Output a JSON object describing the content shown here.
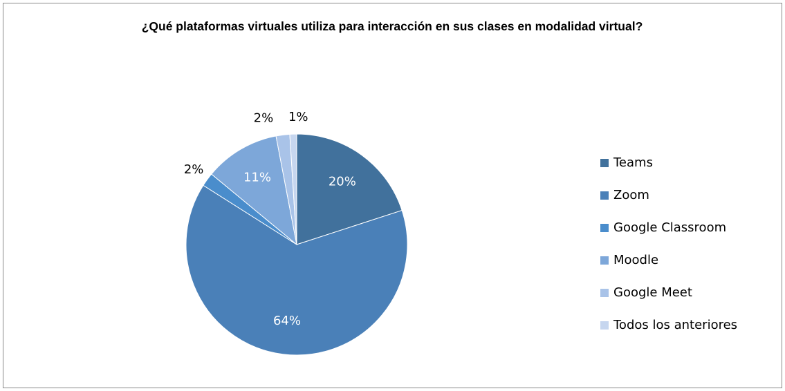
{
  "chart_data": {
    "type": "pie",
    "title": "¿Qué plataformas virtuales utiliza para interacción en sus clases en modalidad virtual?",
    "categories": [
      "Teams",
      "Zoom",
      "Google Classroom",
      "Moodle",
      "Google Meet",
      "Todos los anteriores"
    ],
    "values": [
      20,
      64,
      2,
      11,
      2,
      1
    ],
    "value_labels": [
      "20%",
      "64%",
      "2%",
      "11%",
      "2%",
      "1%"
    ],
    "colors": [
      "#41719c",
      "#4a80b8",
      "#4a8dcc",
      "#7da7d9",
      "#a9c3e8",
      "#c6d6ef"
    ],
    "legend": "right"
  }
}
